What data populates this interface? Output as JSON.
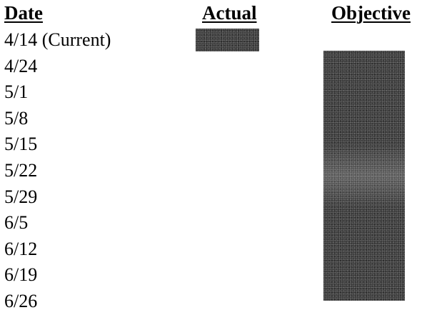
{
  "headers": {
    "date": "Date",
    "actual": "Actual",
    "objective": "Objective"
  },
  "dates": [
    "4/14 (Current)",
    "4/24",
    "5/1",
    "5/8",
    "5/15",
    "5/22",
    "5/29",
    "6/5",
    "6/12",
    "6/19",
    "6/26"
  ],
  "bars": {
    "actual": {
      "start_row": 0,
      "end_row": 0,
      "color": "#3a3a3a"
    },
    "objective": {
      "start_row": 1,
      "end_row": 10,
      "color": "#3a3a3a"
    }
  }
}
